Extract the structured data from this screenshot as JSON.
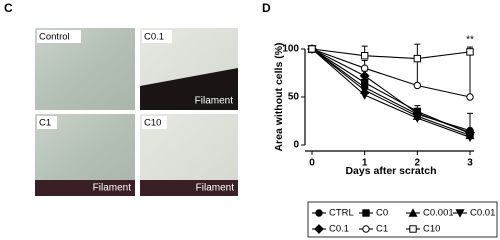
{
  "panel_c": {
    "letter": "C",
    "images": [
      {
        "label": "Control"
      },
      {
        "label": "C0.1",
        "overlay": "Filament"
      },
      {
        "label": "C1",
        "overlay": "Filament"
      },
      {
        "label": "C10",
        "overlay": "Filament"
      }
    ]
  },
  "chart_data": {
    "type": "line",
    "panel_label": "D",
    "xlabel": "Days after scratch",
    "ylabel": "Area without cells (%)",
    "x": [
      0,
      1,
      2,
      3
    ],
    "xlim": [
      0,
      3
    ],
    "xticks": [
      0,
      1,
      2,
      3
    ],
    "ylim": [
      0,
      100
    ],
    "yticks": [
      0,
      50,
      100
    ],
    "annotation": "**",
    "series": [
      {
        "name": "CTRL",
        "color": "#000000",
        "marker": "circle",
        "values": [
          100,
          60,
          32,
          15
        ]
      },
      {
        "name": "C0",
        "color": "#000000",
        "marker": "square",
        "values": [
          100,
          65,
          35,
          12
        ]
      },
      {
        "name": "C0.001",
        "color": "#000000",
        "marker": "triangle",
        "values": [
          100,
          57,
          30,
          10
        ]
      },
      {
        "name": "C0.01",
        "color": "#000000",
        "marker": "triangle-down",
        "values": [
          100,
          52,
          28,
          8
        ]
      },
      {
        "name": "C0.1",
        "color": "#000000",
        "marker": "diamond",
        "values": [
          100,
          72,
          33,
          13
        ],
        "errors": [
          0,
          5,
          8,
          20
        ]
      },
      {
        "name": "C1",
        "color": "#000000",
        "marker": "circle-open",
        "values": [
          100,
          80,
          62,
          50
        ],
        "errors": [
          0,
          8,
          25,
          45
        ]
      },
      {
        "name": "C10",
        "color": "#000000",
        "marker": "square-open",
        "values": [
          100,
          93,
          90,
          97
        ],
        "errors": [
          0,
          10,
          15,
          5
        ]
      }
    ]
  }
}
